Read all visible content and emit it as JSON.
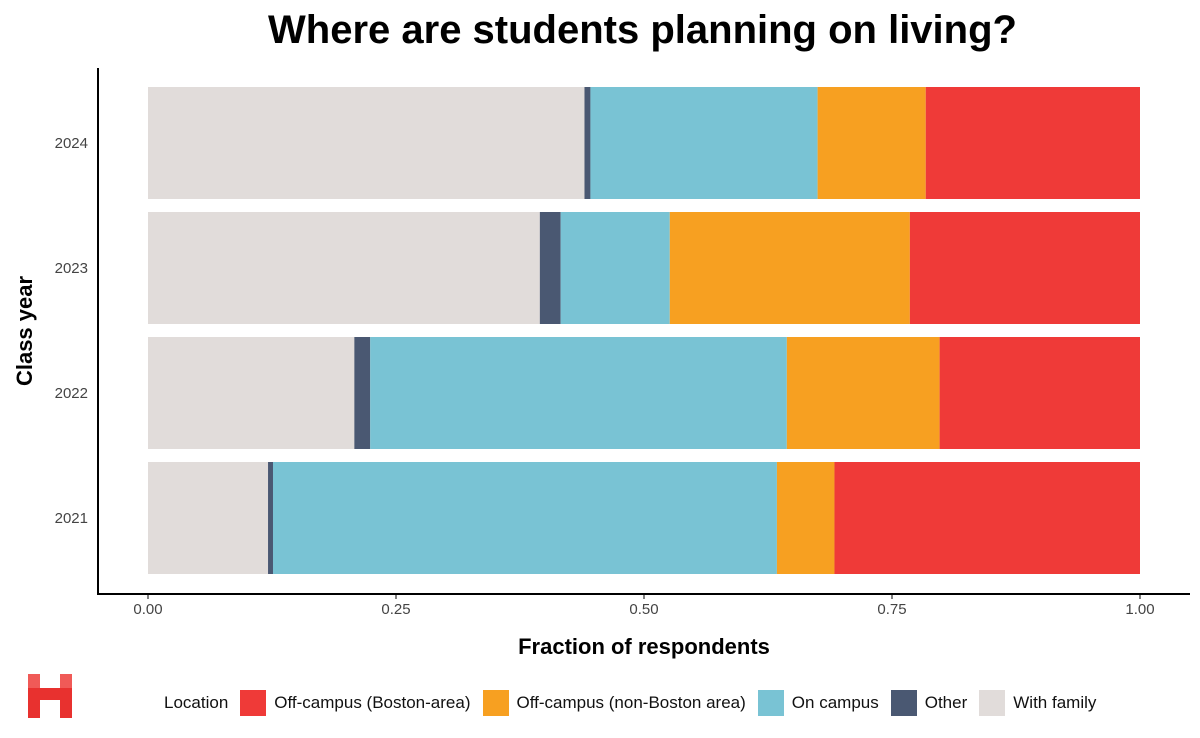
{
  "chart_data": {
    "type": "bar",
    "orientation": "horizontal",
    "stacked": true,
    "title": "Where are students planning on living?",
    "xlabel": "Fraction of respondents",
    "ylabel": "Class year",
    "xlim": [
      0,
      1
    ],
    "xticks": [
      "0.00",
      "0.25",
      "0.50",
      "0.75",
      "1.00"
    ],
    "xtick_values": [
      0,
      0.25,
      0.5,
      0.75,
      1.0
    ],
    "categories": [
      "2024",
      "2023",
      "2022",
      "2021"
    ],
    "legend_title": "Location",
    "legend_position": "bottom",
    "series": [
      {
        "name": "With family",
        "color": "#e1dcda",
        "values": [
          0.44,
          0.395,
          0.208,
          0.121
        ]
      },
      {
        "name": "Other",
        "color": "#4a5872",
        "values": [
          0.006,
          0.021,
          0.016,
          0.005
        ]
      },
      {
        "name": "On campus",
        "color": "#79c3d4",
        "values": [
          0.229,
          0.11,
          0.42,
          0.508
        ]
      },
      {
        "name": "Off-campus (non-Boston area)",
        "color": "#f7a021",
        "values": [
          0.109,
          0.242,
          0.154,
          0.058
        ]
      },
      {
        "name": "Off-campus (Boston-area)",
        "color": "#ef3a38",
        "values": [
          0.216,
          0.232,
          0.202,
          0.308
        ]
      }
    ],
    "legend_order": [
      "Off-campus (Boston-area)",
      "Off-campus (non-Boston area)",
      "On campus",
      "Other",
      "With family"
    ],
    "grid": false
  },
  "logo": {
    "icon": "h-logo-icon",
    "color": "#e8312f"
  }
}
